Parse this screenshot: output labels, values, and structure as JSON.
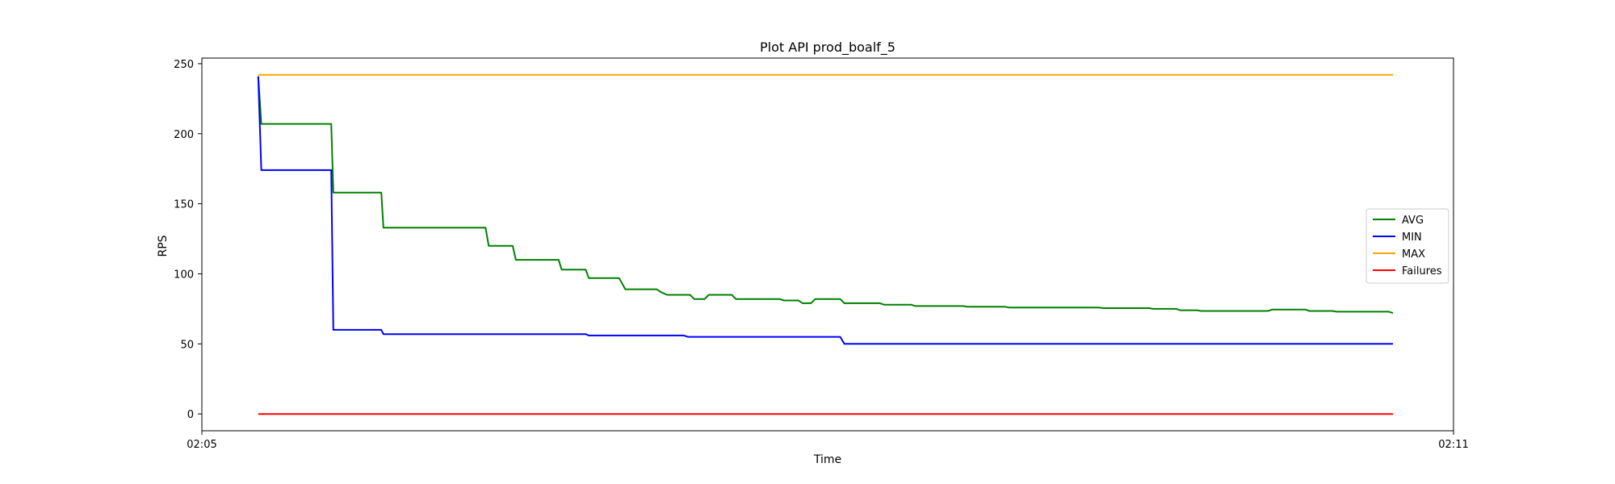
{
  "chart_data": {
    "type": "line",
    "title": "Plot API prod_boalf_5",
    "xlabel": "Time",
    "ylabel": "RPS",
    "x_ticks": [
      "02:05",
      "02:11"
    ],
    "xlim_minutes": [
      0,
      6
    ],
    "ylim": [
      -12,
      254
    ],
    "y_ticks": [
      0,
      50,
      100,
      150,
      200,
      250
    ],
    "grid": false,
    "legend_position": "center-right",
    "series": [
      {
        "name": "AVG",
        "color": "#008000",
        "points": [
          [
            0.27,
            241
          ],
          [
            0.285,
            207
          ],
          [
            0.62,
            207
          ],
          [
            0.63,
            158
          ],
          [
            0.86,
            158
          ],
          [
            0.87,
            133
          ],
          [
            1.36,
            133
          ],
          [
            1.375,
            120
          ],
          [
            1.49,
            120
          ],
          [
            1.505,
            110
          ],
          [
            1.71,
            110
          ],
          [
            1.725,
            103
          ],
          [
            1.84,
            103
          ],
          [
            1.855,
            97
          ],
          [
            2.0,
            97
          ],
          [
            2.03,
            89
          ],
          [
            2.18,
            89
          ],
          [
            2.2,
            87
          ],
          [
            2.23,
            85
          ],
          [
            2.34,
            85
          ],
          [
            2.36,
            82
          ],
          [
            2.41,
            82
          ],
          [
            2.43,
            85
          ],
          [
            2.54,
            85
          ],
          [
            2.56,
            82
          ],
          [
            2.77,
            82
          ],
          [
            2.79,
            81
          ],
          [
            2.86,
            81
          ],
          [
            2.88,
            79
          ],
          [
            2.92,
            79
          ],
          [
            2.94,
            82
          ],
          [
            3.06,
            82
          ],
          [
            3.08,
            79
          ],
          [
            3.25,
            79
          ],
          [
            3.27,
            78
          ],
          [
            3.4,
            78
          ],
          [
            3.42,
            77
          ],
          [
            3.65,
            77
          ],
          [
            3.67,
            76.5
          ],
          [
            3.85,
            76.5
          ],
          [
            3.87,
            76
          ],
          [
            4.3,
            76
          ],
          [
            4.32,
            75.5
          ],
          [
            4.54,
            75.5
          ],
          [
            4.56,
            75
          ],
          [
            4.67,
            75
          ],
          [
            4.69,
            74
          ],
          [
            4.77,
            74
          ],
          [
            4.79,
            73.5
          ],
          [
            5.11,
            73.5
          ],
          [
            5.13,
            74.5
          ],
          [
            5.29,
            74.5
          ],
          [
            5.31,
            73.5
          ],
          [
            5.42,
            73.5
          ],
          [
            5.44,
            73
          ],
          [
            5.69,
            73
          ],
          [
            5.71,
            72
          ]
        ]
      },
      {
        "name": "MIN",
        "color": "#0000ff",
        "points": [
          [
            0.27,
            241
          ],
          [
            0.285,
            174
          ],
          [
            0.62,
            174
          ],
          [
            0.63,
            60
          ],
          [
            0.86,
            60
          ],
          [
            0.87,
            57
          ],
          [
            1.84,
            57
          ],
          [
            1.855,
            56
          ],
          [
            2.31,
            56
          ],
          [
            2.33,
            55
          ],
          [
            3.06,
            55
          ],
          [
            3.08,
            50
          ],
          [
            5.71,
            50
          ]
        ]
      },
      {
        "name": "MAX",
        "color": "#ffa500",
        "points": [
          [
            0.27,
            242
          ],
          [
            5.71,
            242
          ]
        ]
      },
      {
        "name": "Failures",
        "color": "#ff0000",
        "points": [
          [
            0.27,
            0
          ],
          [
            5.71,
            0
          ]
        ]
      }
    ]
  }
}
